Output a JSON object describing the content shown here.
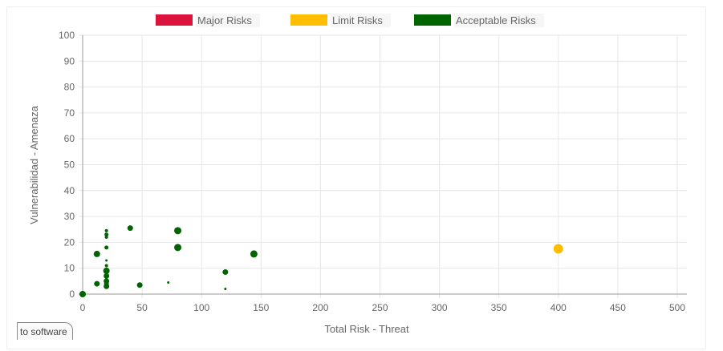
{
  "chart_data": {
    "type": "scatter",
    "xlabel": "Total Risk - Threat",
    "ylabel": "Vulnerabilidad - Amenaza",
    "xlim": [
      0,
      500
    ],
    "ylim": [
      0,
      100
    ],
    "x_ticks": [
      0,
      50,
      100,
      150,
      200,
      250,
      300,
      350,
      400,
      450,
      500
    ],
    "y_ticks": [
      0,
      10,
      20,
      30,
      40,
      50,
      60,
      70,
      80,
      90,
      100
    ],
    "grid": true,
    "legend_position": "top-center",
    "series": [
      {
        "name": "Major Risks",
        "color": "#dc143c",
        "points": []
      },
      {
        "name": "Limit Risks",
        "color": "#ffbf00",
        "points": [
          {
            "x": 400,
            "y": 17.5,
            "r": 6
          }
        ]
      },
      {
        "name": "Acceptable Risks",
        "color": "#006400",
        "points": [
          {
            "x": 0,
            "y": 0,
            "r": 4
          },
          {
            "x": 12,
            "y": 15.5,
            "r": 4
          },
          {
            "x": 12,
            "y": 4,
            "r": 3.5
          },
          {
            "x": 20,
            "y": 24.5,
            "r": 2
          },
          {
            "x": 20,
            "y": 23,
            "r": 2.5
          },
          {
            "x": 20,
            "y": 22,
            "r": 2
          },
          {
            "x": 20,
            "y": 18,
            "r": 2.5
          },
          {
            "x": 20,
            "y": 13,
            "r": 1.5
          },
          {
            "x": 20,
            "y": 11,
            "r": 2
          },
          {
            "x": 20,
            "y": 9,
            "r": 4
          },
          {
            "x": 20,
            "y": 7,
            "r": 3.5
          },
          {
            "x": 20,
            "y": 5,
            "r": 3.5
          },
          {
            "x": 20,
            "y": 4,
            "r": 3
          },
          {
            "x": 20,
            "y": 3,
            "r": 3.5
          },
          {
            "x": 40,
            "y": 25.5,
            "r": 3.5
          },
          {
            "x": 48,
            "y": 3.5,
            "r": 3.5
          },
          {
            "x": 72,
            "y": 4.5,
            "r": 1.5
          },
          {
            "x": 80,
            "y": 24.5,
            "r": 4.5
          },
          {
            "x": 80,
            "y": 18,
            "r": 4.5
          },
          {
            "x": 120,
            "y": 8.5,
            "r": 3.5
          },
          {
            "x": 120,
            "y": 2,
            "r": 1.5
          },
          {
            "x": 144,
            "y": 15.5,
            "r": 4.5
          }
        ]
      }
    ]
  },
  "tab": {
    "label": "to software"
  }
}
